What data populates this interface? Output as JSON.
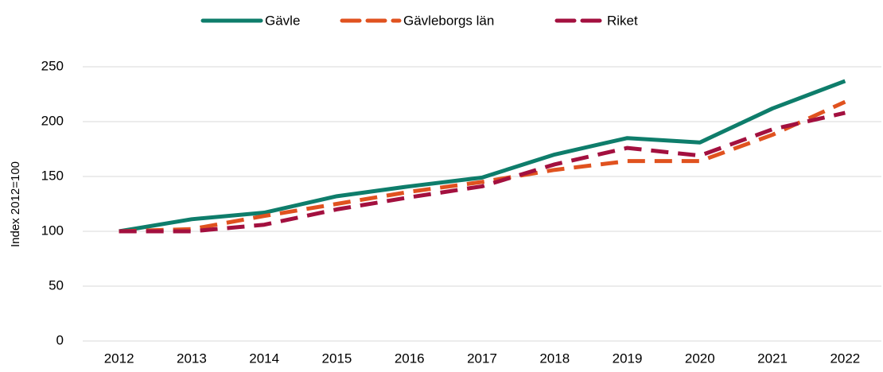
{
  "chart_data": {
    "type": "line",
    "y_label": "Index 2012=100",
    "categories": [
      "2012",
      "2013",
      "2014",
      "2015",
      "2016",
      "2017",
      "2018",
      "2019",
      "2020",
      "2021",
      "2022"
    ],
    "series": [
      {
        "name": "Gävle",
        "color": "#0e7d6b",
        "dash": "solid",
        "values": [
          100,
          111,
          117,
          132,
          141,
          149,
          170,
          185,
          181,
          212,
          237
        ]
      },
      {
        "name": "Gävleborgs län",
        "color": "#e0521f",
        "dash": "dashed",
        "values": [
          100,
          102,
          114,
          125,
          136,
          145,
          156,
          164,
          164,
          188,
          218
        ]
      },
      {
        "name": "Riket",
        "color": "#a3103f",
        "dash": "dashed",
        "values": [
          100,
          100,
          106,
          120,
          131,
          141,
          161,
          176,
          169,
          193,
          208
        ]
      }
    ],
    "ylim": [
      0,
      250
    ],
    "yticks": [
      0,
      50,
      100,
      150,
      200,
      250
    ],
    "grid": true,
    "legend": "top"
  }
}
